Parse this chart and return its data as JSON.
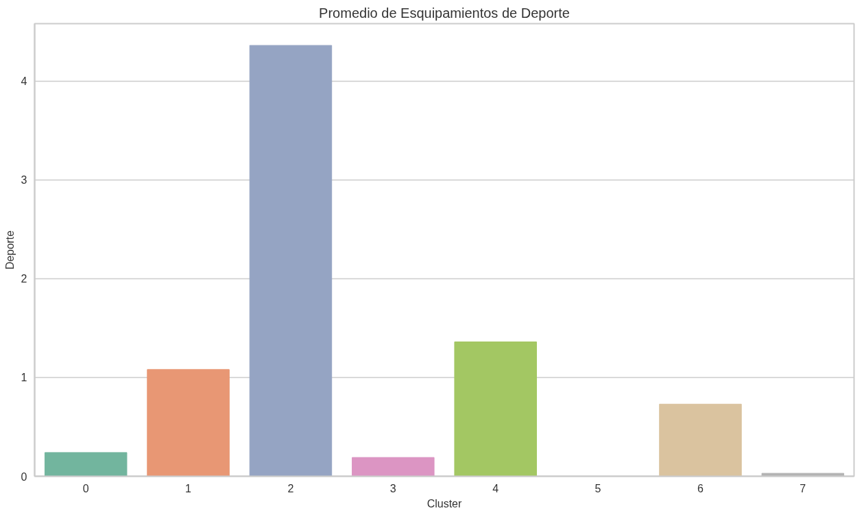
{
  "chart_data": {
    "type": "bar",
    "title": "Promedio de Esquipamientos de Deporte",
    "xlabel": "Cluster",
    "ylabel": "Deporte",
    "categories": [
      "0",
      "1",
      "2",
      "3",
      "4",
      "5",
      "6",
      "7"
    ],
    "values": [
      0.24,
      1.08,
      4.36,
      0.19,
      1.36,
      0,
      0.73,
      0.03
    ],
    "colors": [
      "#72b59e",
      "#e89774",
      "#95a4c3",
      "#dc95c3",
      "#a3c763",
      "#e6cf4f",
      "#dac39f",
      "#b3b3b3"
    ],
    "ylim": [
      0,
      4.58
    ],
    "yticks": [
      0,
      1,
      2,
      3,
      4
    ],
    "grid": "y"
  }
}
